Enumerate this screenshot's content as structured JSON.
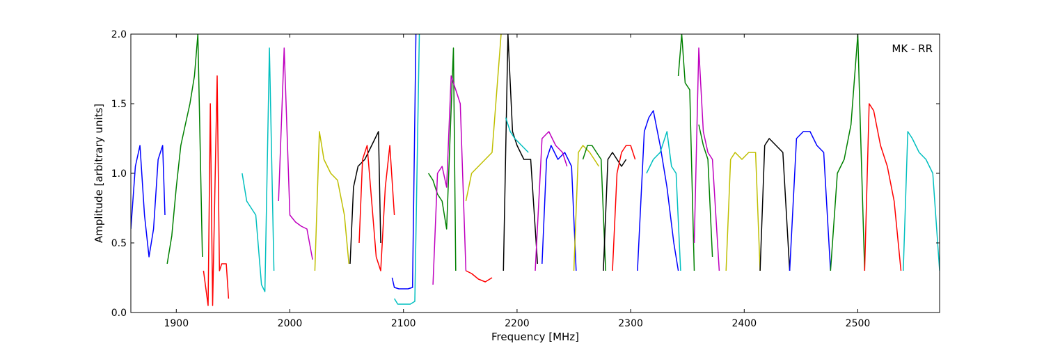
{
  "chart_data": {
    "type": "line",
    "title": "",
    "xlabel": "Frequency [MHz]",
    "ylabel": "Amplitude [arbitrary units]",
    "annotation": "MK - RR",
    "xlim": [
      1860,
      2572
    ],
    "ylim": [
      0.0,
      2.0
    ],
    "xticks": [
      1900,
      2000,
      2100,
      2200,
      2300,
      2400,
      2500
    ],
    "yticks": [
      0.0,
      0.5,
      1.0,
      1.5,
      2.0
    ],
    "ytick_labels": [
      "0.0",
      "0.5",
      "1.0",
      "1.5",
      "2.0"
    ],
    "grid": false,
    "legend": "none",
    "series": [
      {
        "color": "#0000ff",
        "x": [
          1860,
          1864,
          1868,
          1872,
          1876,
          1880,
          1884,
          1888,
          1890
        ],
        "y": [
          0.6,
          1.05,
          1.2,
          0.7,
          0.4,
          0.6,
          1.1,
          1.2,
          0.7
        ]
      },
      {
        "color": "#008000",
        "x": [
          1892,
          1896,
          1900,
          1904,
          1908,
          1912,
          1916,
          1919,
          1923
        ],
        "y": [
          0.35,
          0.55,
          0.9,
          1.2,
          1.35,
          1.5,
          1.7,
          2.0,
          0.4
        ]
      },
      {
        "color": "#ff0000",
        "x": [
          1924,
          1928,
          1930,
          1932,
          1936,
          1938,
          1940,
          1944,
          1946
        ],
        "y": [
          0.3,
          0.05,
          1.5,
          0.05,
          1.7,
          0.3,
          0.35,
          0.35,
          0.1
        ]
      },
      {
        "color": "#00bfbf",
        "x": [
          1958,
          1962,
          1966,
          1970,
          1975,
          1978,
          1982,
          1986
        ],
        "y": [
          1.0,
          0.8,
          0.75,
          0.7,
          0.2,
          0.15,
          1.9,
          0.3
        ]
      },
      {
        "color": "#bf00bf",
        "x": [
          1990,
          1995,
          2000,
          2005,
          2010,
          2015,
          2020
        ],
        "y": [
          0.8,
          1.9,
          0.7,
          0.65,
          0.62,
          0.6,
          0.38
        ]
      },
      {
        "color": "#bfbf00",
        "x": [
          2022,
          2026,
          2030,
          2036,
          2042,
          2048,
          2052
        ],
        "y": [
          0.3,
          1.3,
          1.1,
          1.0,
          0.95,
          0.7,
          0.35
        ]
      },
      {
        "color": "#000000",
        "x": [
          2053,
          2056,
          2060,
          2066,
          2072,
          2078,
          2080
        ],
        "y": [
          0.35,
          0.9,
          1.05,
          1.1,
          1.2,
          1.3,
          0.5
        ]
      },
      {
        "color": "#ff0000",
        "x": [
          2061,
          2064,
          2068,
          2072,
          2076,
          2080,
          2084,
          2088,
          2092
        ],
        "y": [
          0.5,
          1.1,
          1.2,
          0.8,
          0.4,
          0.3,
          0.9,
          1.2,
          0.7
        ]
      },
      {
        "color": "#0000ff",
        "x": [
          2090,
          2092,
          2096,
          2100,
          2104,
          2108,
          2111
        ],
        "y": [
          0.25,
          0.18,
          0.17,
          0.17,
          0.17,
          0.18,
          2.0
        ]
      },
      {
        "color": "#00bfbf",
        "x": [
          2092,
          2095,
          2100,
          2106,
          2110,
          2114
        ],
        "y": [
          0.1,
          0.06,
          0.06,
          0.06,
          0.08,
          2.0
        ]
      },
      {
        "color": "#008000",
        "x": [
          2122,
          2126,
          2130,
          2134,
          2138,
          2144,
          2146
        ],
        "y": [
          1.0,
          0.95,
          0.85,
          0.8,
          0.6,
          1.9,
          0.3
        ]
      },
      {
        "color": "#bf00bf",
        "x": [
          2126,
          2130,
          2134,
          2138,
          2142,
          2146,
          2150,
          2155
        ],
        "y": [
          0.2,
          1.0,
          1.05,
          0.9,
          1.7,
          1.6,
          1.5,
          0.3
        ]
      },
      {
        "color": "#ff0000",
        "x": [
          2155,
          2160,
          2166,
          2172,
          2178
        ],
        "y": [
          0.3,
          0.28,
          0.24,
          0.22,
          0.25
        ]
      },
      {
        "color": "#bfbf00",
        "x": [
          2155,
          2160,
          2166,
          2172,
          2178,
          2186
        ],
        "y": [
          0.8,
          1.0,
          1.05,
          1.1,
          1.15,
          2.0
        ]
      },
      {
        "color": "#000000",
        "x": [
          2188,
          2192,
          2196,
          2200,
          2206,
          2212,
          2218
        ],
        "y": [
          0.3,
          2.0,
          1.3,
          1.2,
          1.1,
          1.1,
          0.35
        ]
      },
      {
        "color": "#00bfbf",
        "x": [
          2190,
          2194,
          2198,
          2204,
          2210
        ],
        "y": [
          1.4,
          1.3,
          1.25,
          1.2,
          1.15
        ]
      },
      {
        "color": "#0000ff",
        "x": [
          2222,
          2226,
          2230,
          2236,
          2242,
          2248,
          2252
        ],
        "y": [
          0.35,
          1.1,
          1.2,
          1.1,
          1.15,
          1.05,
          0.3
        ]
      },
      {
        "color": "#bf00bf",
        "x": [
          2216,
          2222,
          2228,
          2234,
          2240,
          2244
        ],
        "y": [
          0.3,
          1.25,
          1.3,
          1.2,
          1.15,
          1.05
        ]
      },
      {
        "color": "#bfbf00",
        "x": [
          2250,
          2254,
          2258,
          2264,
          2268,
          2272
        ],
        "y": [
          0.3,
          1.15,
          1.2,
          1.15,
          1.1,
          1.05
        ]
      },
      {
        "color": "#008000",
        "x": [
          2258,
          2262,
          2266,
          2270,
          2274,
          2278
        ],
        "y": [
          1.1,
          1.2,
          1.2,
          1.15,
          1.1,
          0.3
        ]
      },
      {
        "color": "#000000",
        "x": [
          2276,
          2280,
          2284,
          2288,
          2292,
          2296
        ],
        "y": [
          0.3,
          1.1,
          1.15,
          1.1,
          1.05,
          1.1
        ]
      },
      {
        "color": "#ff0000",
        "x": [
          2284,
          2288,
          2292,
          2296,
          2300,
          2304
        ],
        "y": [
          0.3,
          1.0,
          1.15,
          1.2,
          1.2,
          1.1
        ]
      },
      {
        "color": "#0000ff",
        "x": [
          2306,
          2312,
          2316,
          2320,
          2326,
          2332,
          2338,
          2342
        ],
        "y": [
          0.3,
          1.3,
          1.4,
          1.45,
          1.2,
          0.9,
          0.5,
          0.3
        ]
      },
      {
        "color": "#00bfbf",
        "x": [
          2314,
          2320,
          2326,
          2332,
          2336,
          2340,
          2344
        ],
        "y": [
          1.0,
          1.1,
          1.15,
          1.3,
          1.05,
          1.0,
          0.3
        ]
      },
      {
        "color": "#008000",
        "x": [
          2342,
          2345,
          2348,
          2352,
          2356
        ],
        "y": [
          1.7,
          2.0,
          1.65,
          1.6,
          0.3
        ]
      },
      {
        "color": "#bf00bf",
        "x": [
          2356,
          2360,
          2364,
          2368,
          2372,
          2378
        ],
        "y": [
          0.5,
          1.9,
          1.3,
          1.15,
          1.1,
          0.3
        ]
      },
      {
        "color": "#008000",
        "x": [
          2360,
          2364,
          2368,
          2372
        ],
        "y": [
          1.35,
          1.2,
          1.1,
          0.4
        ]
      },
      {
        "color": "#bfbf00",
        "x": [
          2384,
          2388,
          2392,
          2398,
          2404,
          2410,
          2414
        ],
        "y": [
          0.3,
          1.1,
          1.15,
          1.1,
          1.15,
          1.15,
          0.3
        ]
      },
      {
        "color": "#000000",
        "x": [
          2414,
          2418,
          2422,
          2428,
          2434,
          2440
        ],
        "y": [
          0.3,
          1.2,
          1.25,
          1.2,
          1.15,
          0.3
        ]
      },
      {
        "color": "#0000ff",
        "x": [
          2440,
          2446,
          2452,
          2458,
          2464,
          2470,
          2476
        ],
        "y": [
          0.3,
          1.25,
          1.3,
          1.3,
          1.2,
          1.15,
          0.3
        ]
      },
      {
        "color": "#008000",
        "x": [
          2476,
          2482,
          2488,
          2494,
          2500,
          2502,
          2506
        ],
        "y": [
          0.3,
          1.0,
          1.1,
          1.35,
          2.0,
          1.4,
          0.3
        ]
      },
      {
        "color": "#ff0000",
        "x": [
          2506,
          2510,
          2514,
          2520,
          2526,
          2532,
          2538
        ],
        "y": [
          0.3,
          1.5,
          1.45,
          1.2,
          1.05,
          0.8,
          0.3
        ]
      },
      {
        "color": "#00bfbf",
        "x": [
          2540,
          2544,
          2548,
          2554,
          2560,
          2566,
          2572
        ],
        "y": [
          0.3,
          1.3,
          1.25,
          1.15,
          1.1,
          1.0,
          0.3
        ]
      }
    ]
  }
}
